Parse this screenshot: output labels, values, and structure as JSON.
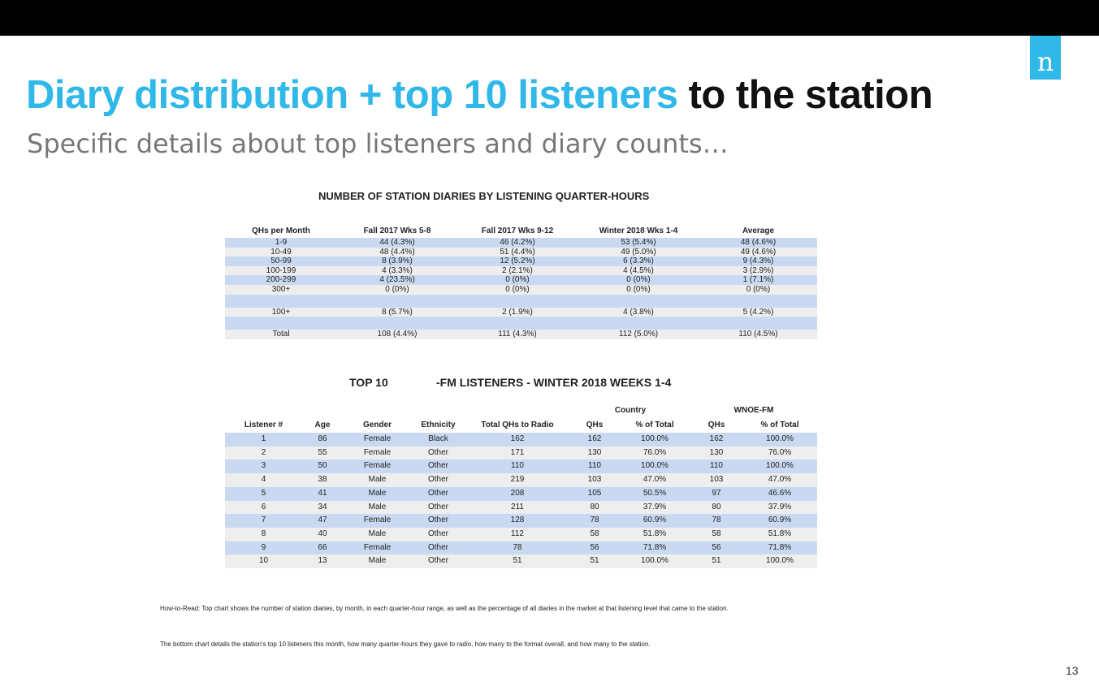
{
  "logo": {
    "glyph": "n"
  },
  "title": {
    "highlight": "Diary distribution + top 10 listeners",
    "rest": " to the station"
  },
  "subtitle": "Specific details about top listeners and diary counts…",
  "table1": {
    "title": "NUMBER OF STATION DIARIES BY LISTENING QUARTER-HOURS",
    "headers": [
      "QHs per Month",
      "Fall 2017 Wks 5-8",
      "Fall 2017 Wks 9-12",
      "Winter 2018 Wks 1-4",
      "Average"
    ],
    "rows": [
      [
        "1-9",
        "44 (4.3%)",
        "46 (4.2%)",
        "53 (5.4%)",
        "48 (4.6%)"
      ],
      [
        "10-49",
        "48 (4.4%)",
        "51 (4.4%)",
        "49 (5.0%)",
        "49 (4.6%)"
      ],
      [
        "50-99",
        "8 (3.9%)",
        "12 (5.2%)",
        "6 (3.3%)",
        "9 (4.3%)"
      ],
      [
        "100-199",
        "4 (3.3%)",
        "2 (2.1%)",
        "4 (4.5%)",
        "3 (2.9%)"
      ],
      [
        "200-299",
        "4 (23.5%)",
        "0 (0%)",
        "0 (0%)",
        "1 (7.1%)"
      ],
      [
        "300+",
        "0 (0%)",
        "0 (0%)",
        "0 (0%)",
        "0 (0%)"
      ],
      [
        "",
        "",
        "",
        "",
        ""
      ],
      [
        "100+",
        "8 (5.7%)",
        "2 (1.9%)",
        "4 (3.8%)",
        "5 (4.2%)"
      ],
      [
        "",
        "",
        "",
        "",
        ""
      ],
      [
        "Total",
        "108 (4.4%)",
        "111 (4.3%)",
        "112 (5.0%)",
        "110 (4.5%)"
      ]
    ]
  },
  "table2": {
    "title_a": "TOP 10",
    "title_b": "-FM LISTENERS - WINTER 2018 WEEKS 1-4",
    "group_country": "Country",
    "group_station": "WNOE-FM",
    "headers": [
      "Listener #",
      "Age",
      "Gender",
      "Ethnicity",
      "Total QHs to Radio",
      "QHs",
      "% of Total",
      "QHs",
      "% of Total"
    ],
    "rows": [
      [
        "1",
        "86",
        "Female",
        "Black",
        "162",
        "162",
        "100.0%",
        "162",
        "100.0%"
      ],
      [
        "2",
        "55",
        "Female",
        "Other",
        "171",
        "130",
        "76.0%",
        "130",
        "76.0%"
      ],
      [
        "3",
        "50",
        "Female",
        "Other",
        "110",
        "110",
        "100.0%",
        "110",
        "100.0%"
      ],
      [
        "4",
        "38",
        "Male",
        "Other",
        "219",
        "103",
        "47.0%",
        "103",
        "47.0%"
      ],
      [
        "5",
        "41",
        "Male",
        "Other",
        "208",
        "105",
        "50.5%",
        "97",
        "46.6%"
      ],
      [
        "6",
        "34",
        "Male",
        "Other",
        "211",
        "80",
        "37.9%",
        "80",
        "37.9%"
      ],
      [
        "7",
        "47",
        "Female",
        "Other",
        "128",
        "78",
        "60.9%",
        "78",
        "60.9%"
      ],
      [
        "8",
        "40",
        "Male",
        "Other",
        "112",
        "58",
        "51.8%",
        "58",
        "51.8%"
      ],
      [
        "9",
        "66",
        "Female",
        "Other",
        "78",
        "56",
        "71.8%",
        "56",
        "71.8%"
      ],
      [
        "10",
        "13",
        "Male",
        "Other",
        "51",
        "51",
        "100.0%",
        "51",
        "100.0%"
      ]
    ]
  },
  "notes": {
    "note1": "How-to-Read:  Top chart shows the number of station diaries, by month, in each quarter-hour range, as well as the percentage of all diaries in the market at that listening level that came to the station.",
    "note2": "The bottom chart details the station's top 10 listeners this month, how many quarter-hours they gave to radio, how many to the format overall, and how many to the station."
  },
  "page_number": "13"
}
